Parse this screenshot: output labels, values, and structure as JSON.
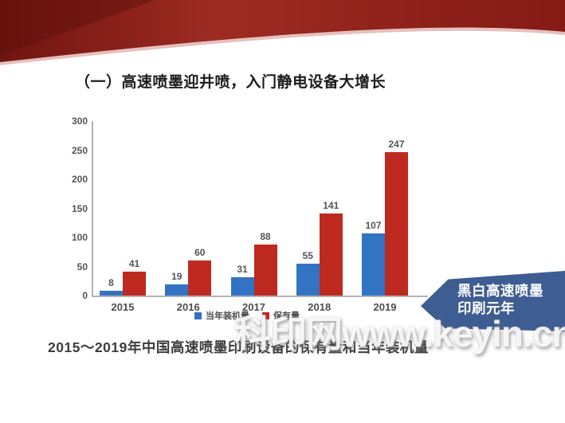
{
  "slide": {
    "title": "（一）高速喷墨迎井喷，入门静电设备大增长",
    "caption": "2015～2019年中国高速喷墨印刷设备的保有量和当年装机量",
    "banner": {
      "line1": "黑白高速喷墨",
      "line2": "印刷元年",
      "color": "#3E5D92"
    },
    "watermark": "科印网www.keyin.cn",
    "colors": {
      "ribbon_red": "#9D2B22",
      "bar_blue": "#3273C4",
      "bar_red": "#BE2920",
      "banner_blue": "#3E5D92"
    }
  },
  "chart_data": {
    "type": "bar",
    "categories": [
      "2015",
      "2016",
      "2017",
      "2018",
      "2019"
    ],
    "series": [
      {
        "name": "当年装机量",
        "color": "#3273C4",
        "values": [
          8,
          19,
          31,
          55,
          107
        ]
      },
      {
        "name": "保有量",
        "color": "#BE2920",
        "values": [
          41,
          60,
          88,
          141,
          247
        ]
      }
    ],
    "title": "",
    "xlabel": "",
    "ylabel": "",
    "ylim": [
      0,
      300
    ],
    "yticks": [
      0,
      50,
      100,
      150,
      200,
      250,
      300
    ],
    "grid": false,
    "legend_position": "bottom",
    "data_labels": true
  }
}
